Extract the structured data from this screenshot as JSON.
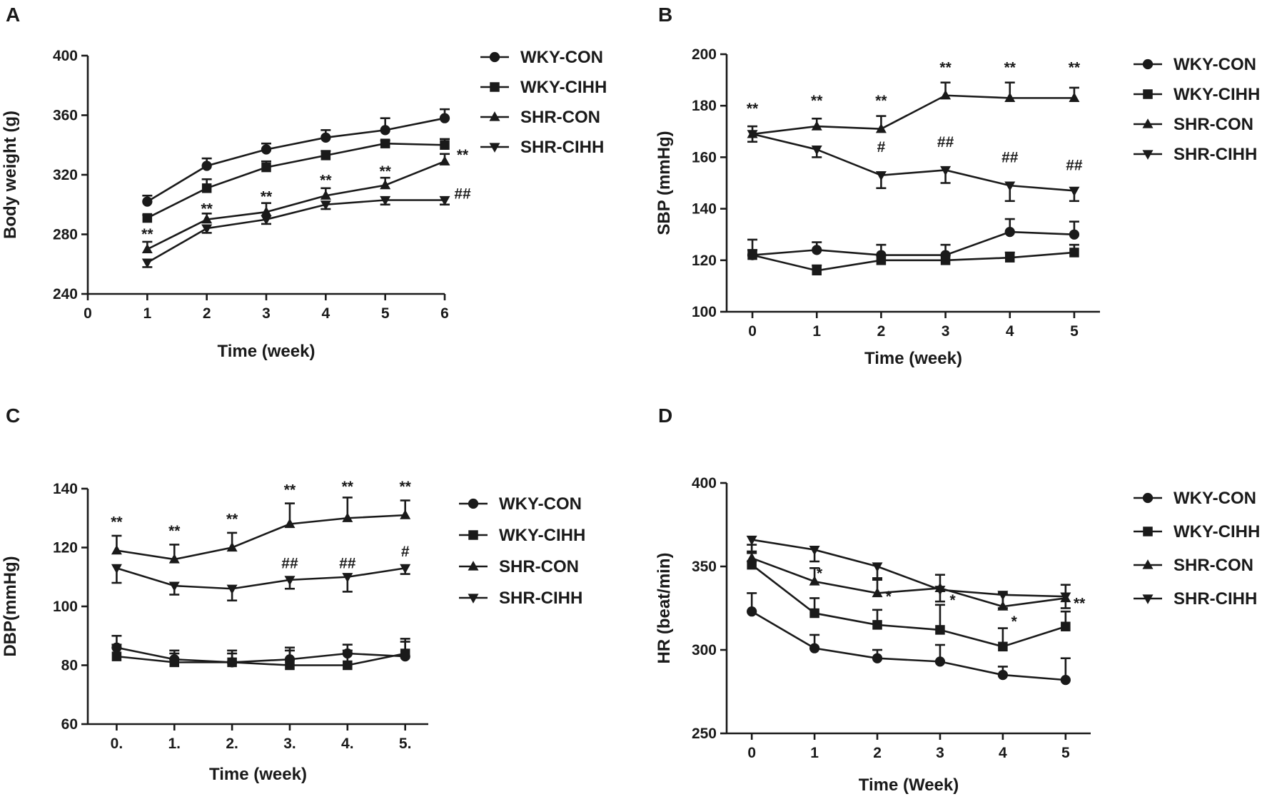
{
  "panels": [
    {
      "letter": "A"
    },
    {
      "letter": "B"
    },
    {
      "letter": "C"
    },
    {
      "letter": "D"
    }
  ],
  "chart_data": [
    {
      "type": "line",
      "panel": "A",
      "title": "",
      "xlabel": "Time (week)",
      "ylabel": "Body weight (g)",
      "xlim": [
        0,
        6
      ],
      "ylim": [
        240,
        400
      ],
      "xticks": [
        0,
        1,
        2,
        3,
        4,
        5,
        6
      ],
      "xtick_labels": [
        "0",
        "1",
        "2",
        "3",
        "4",
        "5",
        "6"
      ],
      "yticks": [
        240,
        280,
        320,
        360,
        400
      ],
      "x": [
        1,
        2,
        3,
        4,
        5,
        6
      ],
      "legend": "top-right",
      "series": [
        {
          "name": "WKY-CON",
          "marker": "circle",
          "values": [
            302,
            326,
            337,
            345,
            350,
            358
          ],
          "errors": [
            4,
            5,
            4,
            5,
            8,
            6
          ]
        },
        {
          "name": "WKY-CIHH",
          "marker": "square",
          "values": [
            291,
            311,
            325,
            333,
            341,
            340
          ],
          "errors": [
            2,
            6,
            4,
            3,
            2,
            4
          ]
        },
        {
          "name": "SHR-CON",
          "marker": "triangle-up",
          "values": [
            270,
            290,
            295,
            306,
            313,
            329
          ],
          "errors": [
            5,
            4,
            6,
            5,
            5,
            5
          ]
        },
        {
          "name": "SHR-CIHH",
          "marker": "triangle-down",
          "values": [
            261,
            284,
            290,
            300,
            303,
            303
          ],
          "errors": [
            3,
            3,
            3,
            3,
            3,
            3
          ]
        }
      ],
      "annotations": [
        {
          "text": "**",
          "x": 1,
          "y": 277
        },
        {
          "text": "**",
          "x": 2,
          "y": 294
        },
        {
          "text": "**",
          "x": 3,
          "y": 302
        },
        {
          "text": "**",
          "x": 4,
          "y": 313
        },
        {
          "text": "**",
          "x": 5,
          "y": 319
        },
        {
          "text": "**",
          "x": 6.3,
          "y": 330
        },
        {
          "text": "##",
          "x": 6.3,
          "y": 304
        }
      ]
    },
    {
      "type": "line",
      "panel": "B",
      "title": "",
      "xlabel": "Time (week)",
      "ylabel": "SBP (mmHg)",
      "xlim": [
        -0.4,
        5.4
      ],
      "ylim": [
        100,
        200
      ],
      "xticks": [
        0,
        1,
        2,
        3,
        4,
        5
      ],
      "xtick_labels": [
        "0",
        "1",
        "2",
        "3",
        "4",
        "5"
      ],
      "yticks": [
        100,
        120,
        140,
        160,
        180,
        200
      ],
      "x": [
        0,
        1,
        2,
        3,
        4,
        5
      ],
      "legend": "top-right",
      "series": [
        {
          "name": "WKY-CON",
          "marker": "circle",
          "values": [
            122,
            124,
            122,
            122,
            131,
            130
          ],
          "errors": [
            6,
            3,
            4,
            4,
            5,
            5
          ]
        },
        {
          "name": "WKY-CIHH",
          "marker": "square",
          "values": [
            122,
            116,
            120,
            120,
            121,
            123
          ],
          "errors": [
            2,
            2,
            2,
            2,
            2,
            3
          ]
        },
        {
          "name": "SHR-CON",
          "marker": "triangle-up",
          "values": [
            169,
            172,
            171,
            184,
            183,
            183
          ],
          "errors": [
            3,
            3,
            5,
            5,
            6,
            4
          ]
        },
        {
          "name": "SHR-CIHH",
          "marker": "triangle-down",
          "values": [
            169,
            163,
            153,
            155,
            149,
            147
          ],
          "errors": [
            3,
            3,
            5,
            5,
            6,
            4
          ]
        }
      ],
      "annotations": [
        {
          "text": "**",
          "x": 0,
          "y": 177
        },
        {
          "text": "**",
          "x": 1,
          "y": 180
        },
        {
          "text": "**",
          "x": 2,
          "y": 180
        },
        {
          "text": "**",
          "x": 3,
          "y": 193
        },
        {
          "text": "**",
          "x": 4,
          "y": 193
        },
        {
          "text": "**",
          "x": 5,
          "y": 193
        },
        {
          "text": "#",
          "x": 2,
          "y": 162
        },
        {
          "text": "##",
          "x": 3,
          "y": 164
        },
        {
          "text": "##",
          "x": 4,
          "y": 158
        },
        {
          "text": "##",
          "x": 5,
          "y": 155
        }
      ]
    },
    {
      "type": "line",
      "panel": "C",
      "title": "",
      "xlabel": "Time (week)",
      "ylabel": "DBP(mmHg)",
      "xlim": [
        -0.5,
        5.4
      ],
      "ylim": [
        60,
        140
      ],
      "xticks": [
        0,
        1,
        2,
        3,
        4,
        5
      ],
      "xtick_labels": [
        "0.",
        "1.",
        "2.",
        "3.",
        "4.",
        "5."
      ],
      "yticks": [
        60,
        80,
        100,
        120,
        140
      ],
      "x": [
        0,
        1,
        2,
        3,
        4,
        5
      ],
      "legend": "top-right",
      "series": [
        {
          "name": "WKY-CON",
          "marker": "circle",
          "values": [
            86,
            82,
            81,
            82,
            84,
            83
          ],
          "errors": [
            4,
            3,
            4,
            4,
            3,
            6
          ]
        },
        {
          "name": "WKY-CIHH",
          "marker": "square",
          "values": [
            83,
            81,
            81,
            80,
            80,
            84
          ],
          "errors": [
            4,
            3,
            3,
            5,
            5,
            4
          ]
        },
        {
          "name": "SHR-CON",
          "marker": "triangle-up",
          "values": [
            119,
            116,
            120,
            128,
            130,
            131
          ],
          "errors": [
            5,
            5,
            5,
            7,
            7,
            5
          ]
        },
        {
          "name": "SHR-CIHH",
          "marker": "triangle-down",
          "values": [
            113,
            107,
            106,
            109,
            110,
            113
          ],
          "errors": [
            5,
            3,
            4,
            3,
            5,
            2
          ]
        }
      ],
      "annotations": [
        {
          "text": "**",
          "x": 0,
          "y": 127
        },
        {
          "text": "**",
          "x": 1,
          "y": 124
        },
        {
          "text": "**",
          "x": 2,
          "y": 128
        },
        {
          "text": "**",
          "x": 3,
          "y": 138
        },
        {
          "text": "**",
          "x": 4,
          "y": 139
        },
        {
          "text": "**",
          "x": 5,
          "y": 139
        },
        {
          "text": "##",
          "x": 3,
          "y": 113
        },
        {
          "text": "##",
          "x": 4,
          "y": 113
        },
        {
          "text": "#",
          "x": 5,
          "y": 117
        }
      ]
    },
    {
      "type": "line",
      "panel": "D",
      "title": "",
      "xlabel": "Time (Week)",
      "ylabel": "HR (beat/min)",
      "xlim": [
        -0.4,
        5.4
      ],
      "ylim": [
        250,
        400
      ],
      "xticks": [
        0,
        1,
        2,
        3,
        4,
        5
      ],
      "xtick_labels": [
        "0",
        "1",
        "2",
        "3",
        "4",
        "5"
      ],
      "yticks": [
        250,
        300,
        350,
        400
      ],
      "x": [
        0,
        1,
        2,
        3,
        4,
        5
      ],
      "legend": "top-right",
      "series": [
        {
          "name": "WKY-CON",
          "marker": "circle",
          "values": [
            323,
            301,
            295,
            293,
            285,
            282
          ],
          "errors": [
            11,
            8,
            5,
            10,
            5,
            13
          ]
        },
        {
          "name": "WKY-CIHH",
          "marker": "square",
          "values": [
            351,
            322,
            315,
            312,
            302,
            314
          ],
          "errors": [
            7,
            9,
            9,
            15,
            11,
            9
          ]
        },
        {
          "name": "SHR-CON",
          "marker": "triangle-up",
          "values": [
            355,
            341,
            334,
            337,
            326,
            331
          ],
          "errors": [
            8,
            8,
            8,
            8,
            8,
            8
          ]
        },
        {
          "name": "SHR-CIHH",
          "marker": "triangle-down",
          "values": [
            366,
            360,
            350,
            336,
            333,
            332
          ],
          "errors": [
            7,
            7,
            7,
            7,
            8,
            7
          ]
        }
      ],
      "annotations": [
        {
          "text": "*",
          "x": 1.08,
          "y": 343
        },
        {
          "text": "*",
          "x": 2.18,
          "y": 329
        },
        {
          "text": "*",
          "x": 3.2,
          "y": 327
        },
        {
          "text": "*",
          "x": 4.18,
          "y": 314
        },
        {
          "text": "**",
          "x": 5.22,
          "y": 325
        }
      ]
    }
  ]
}
